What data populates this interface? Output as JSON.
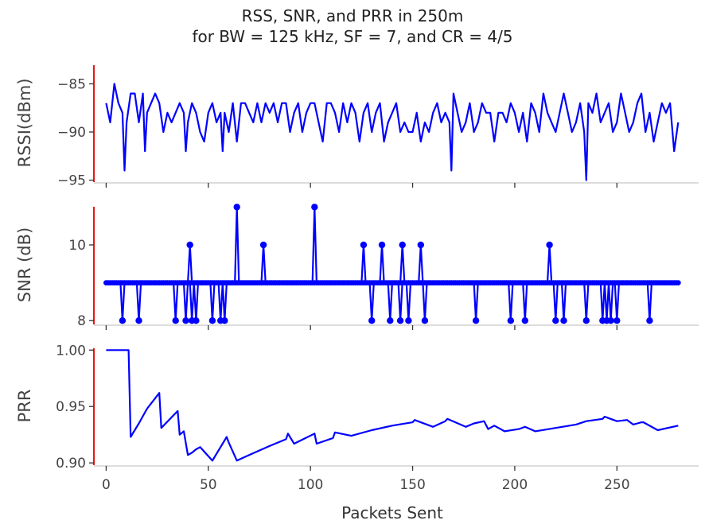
{
  "figure": {
    "title_line1": "RSS, SNR, and PRR in 250m",
    "title_line2": "for BW = 125 kHz, SF = 7, and CR = 4/5",
    "xlabel": "Packets Sent",
    "x_ticks": [
      "0",
      "50",
      "100",
      "150",
      "200",
      "250"
    ],
    "x_tick_values": [
      0,
      50,
      100,
      150,
      200,
      250
    ],
    "xlim": [
      -6,
      290
    ]
  },
  "colors": {
    "series": "#0000ff",
    "spine": "#e41a1c",
    "axis": "#d0d0d0",
    "text": "#444444"
  },
  "chart_data": [
    {
      "type": "line",
      "ylabel": "RSSI(dBm)",
      "ylim": [
        -95.2,
        -82.9
      ],
      "y_ticks": [
        "−85",
        "−90",
        "−95"
      ],
      "y_tick_values": [
        -85,
        -90,
        -95
      ],
      "x": [
        0,
        2,
        4,
        6,
        8,
        9,
        10,
        12,
        14,
        16,
        18,
        19,
        20,
        22,
        24,
        26,
        28,
        30,
        32,
        34,
        36,
        38,
        39,
        40,
        42,
        44,
        46,
        48,
        50,
        52,
        54,
        56,
        57,
        58,
        60,
        62,
        64,
        66,
        68,
        70,
        72,
        74,
        76,
        78,
        80,
        82,
        84,
        86,
        88,
        90,
        92,
        94,
        96,
        98,
        100,
        102,
        104,
        106,
        108,
        110,
        112,
        114,
        116,
        118,
        120,
        122,
        124,
        126,
        128,
        130,
        132,
        134,
        136,
        138,
        140,
        142,
        144,
        146,
        148,
        150,
        152,
        154,
        156,
        158,
        160,
        162,
        164,
        166,
        168,
        169,
        170,
        172,
        174,
        176,
        178,
        180,
        182,
        184,
        186,
        188,
        190,
        192,
        194,
        196,
        198,
        200,
        202,
        204,
        206,
        208,
        210,
        212,
        214,
        216,
        218,
        220,
        222,
        224,
        226,
        228,
        230,
        232,
        234,
        235,
        236,
        238,
        240,
        242,
        244,
        246,
        248,
        250,
        252,
        254,
        256,
        258,
        260,
        262,
        264,
        266,
        268,
        270,
        272,
        274,
        276,
        278,
        280
      ],
      "values": [
        -87,
        -89,
        -85,
        -87,
        -88,
        -94,
        -89,
        -86,
        -86,
        -89,
        -86,
        -92,
        -88,
        -87,
        -86,
        -87,
        -90,
        -88,
        -89,
        -88,
        -87,
        -88,
        -92,
        -89,
        -87,
        -88,
        -90,
        -91,
        -88,
        -87,
        -89,
        -88,
        -92,
        -88,
        -90,
        -87,
        -91,
        -87,
        -87,
        -88,
        -89,
        -87,
        -89,
        -87,
        -88,
        -87,
        -89,
        -87,
        -87,
        -90,
        -88,
        -87,
        -90,
        -88,
        -87,
        -87,
        -89,
        -91,
        -87,
        -87,
        -88,
        -90,
        -87,
        -89,
        -87,
        -88,
        -91,
        -88,
        -87,
        -90,
        -88,
        -87,
        -91,
        -89,
        -88,
        -87,
        -90,
        -89,
        -90,
        -90,
        -88,
        -91,
        -89,
        -90,
        -88,
        -87,
        -89,
        -88,
        -89,
        -94,
        -86,
        -88,
        -90,
        -89,
        -87,
        -90,
        -89,
        -87,
        -88,
        -88,
        -91,
        -88,
        -88,
        -89,
        -87,
        -88,
        -90,
        -88,
        -91,
        -87,
        -88,
        -90,
        -86,
        -88,
        -89,
        -90,
        -88,
        -86,
        -88,
        -90,
        -89,
        -87,
        -90,
        -95,
        -87,
        -88,
        -86,
        -89,
        -88,
        -87,
        -90,
        -89,
        -86,
        -88,
        -90,
        -89,
        -87,
        -86,
        -90,
        -88,
        -91,
        -89,
        -87,
        -88,
        -87,
        -92,
        -89
      ]
    },
    {
      "type": "line",
      "ylabel": "SNR (dB)",
      "ylim": [
        7.9,
        11.05
      ],
      "y_ticks": [
        "10",
        "8"
      ],
      "y_tick_values": [
        10,
        8
      ],
      "baseline": 9,
      "x_max": 280,
      "spikes": [
        {
          "x": 8,
          "y": 8
        },
        {
          "x": 16,
          "y": 8
        },
        {
          "x": 34,
          "y": 8
        },
        {
          "x": 39,
          "y": 8
        },
        {
          "x": 41,
          "y": 10
        },
        {
          "x": 42,
          "y": 8
        },
        {
          "x": 44,
          "y": 8
        },
        {
          "x": 52,
          "y": 8
        },
        {
          "x": 56,
          "y": 8
        },
        {
          "x": 58,
          "y": 8
        },
        {
          "x": 64,
          "y": 11
        },
        {
          "x": 77,
          "y": 10
        },
        {
          "x": 102,
          "y": 11
        },
        {
          "x": 126,
          "y": 10
        },
        {
          "x": 130,
          "y": 8
        },
        {
          "x": 135,
          "y": 10
        },
        {
          "x": 139,
          "y": 8
        },
        {
          "x": 144,
          "y": 8
        },
        {
          "x": 145,
          "y": 10
        },
        {
          "x": 148,
          "y": 8
        },
        {
          "x": 154,
          "y": 10
        },
        {
          "x": 156,
          "y": 8
        },
        {
          "x": 181,
          "y": 8
        },
        {
          "x": 198,
          "y": 8
        },
        {
          "x": 205,
          "y": 8
        },
        {
          "x": 217,
          "y": 10
        },
        {
          "x": 220,
          "y": 8
        },
        {
          "x": 224,
          "y": 8
        },
        {
          "x": 235,
          "y": 8
        },
        {
          "x": 243,
          "y": 8
        },
        {
          "x": 245,
          "y": 8
        },
        {
          "x": 247,
          "y": 8
        },
        {
          "x": 250,
          "y": 8
        },
        {
          "x": 266,
          "y": 8
        }
      ]
    },
    {
      "type": "line",
      "ylabel": "PRR",
      "ylim": [
        0.898,
        1.003
      ],
      "y_ticks": [
        "1.00",
        "0.95",
        "0.90"
      ],
      "y_tick_values": [
        1.0,
        0.95,
        0.9
      ],
      "x": [
        0,
        11,
        12,
        16,
        20,
        26,
        27,
        35,
        36,
        38,
        40,
        42,
        44,
        46,
        52,
        59,
        60,
        64,
        70,
        80,
        88,
        89,
        92,
        102,
        103,
        111,
        112,
        120,
        130,
        140,
        150,
        151,
        160,
        166,
        167,
        176,
        180,
        185,
        187,
        190,
        195,
        202,
        205,
        210,
        220,
        230,
        235,
        243,
        244,
        250,
        255,
        258,
        260,
        262,
        263,
        270,
        280
      ],
      "values": [
        1.0,
        1.0,
        0.923,
        0.935,
        0.948,
        0.962,
        0.931,
        0.946,
        0.925,
        0.928,
        0.907,
        0.909,
        0.912,
        0.914,
        0.902,
        0.923,
        0.918,
        0.902,
        0.907,
        0.915,
        0.921,
        0.926,
        0.917,
        0.926,
        0.917,
        0.922,
        0.927,
        0.924,
        0.929,
        0.933,
        0.936,
        0.938,
        0.932,
        0.937,
        0.939,
        0.932,
        0.935,
        0.937,
        0.93,
        0.933,
        0.928,
        0.93,
        0.932,
        0.928,
        0.931,
        0.934,
        0.937,
        0.939,
        0.941,
        0.937,
        0.938,
        0.934,
        0.935,
        0.936,
        0.936,
        0.929,
        0.933
      ]
    }
  ]
}
